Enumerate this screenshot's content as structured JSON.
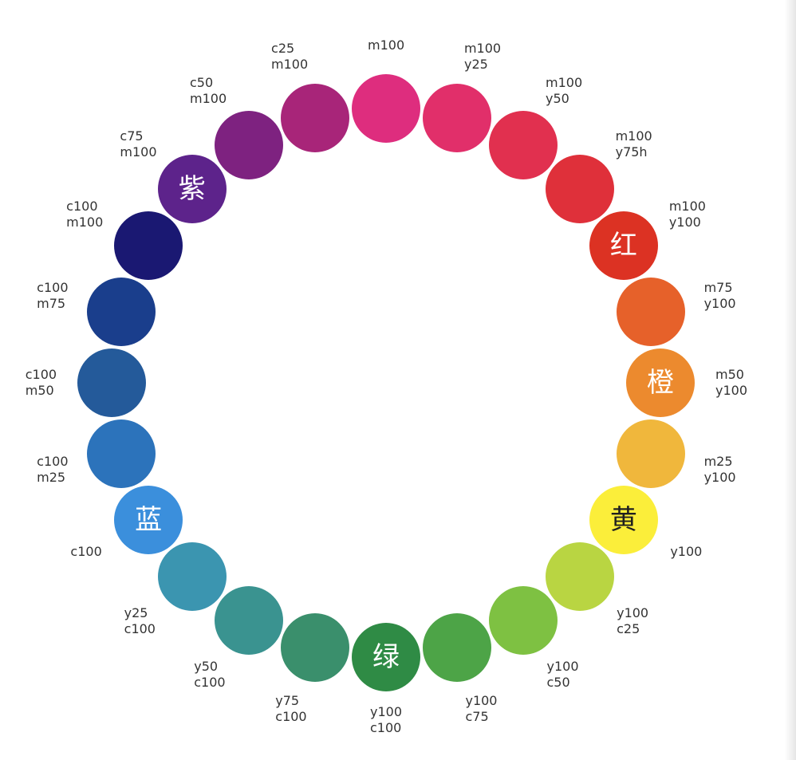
{
  "swatches": [
    {
      "lines": [
        "m100"
      ],
      "color": "#de2d7e",
      "glyph": ""
    },
    {
      "lines": [
        "m100",
        "y25"
      ],
      "color": "#e12f6a",
      "glyph": ""
    },
    {
      "lines": [
        "m100",
        "y50"
      ],
      "color": "#e1304f",
      "glyph": ""
    },
    {
      "lines": [
        "m100",
        "y75h"
      ],
      "color": "#df303a",
      "glyph": ""
    },
    {
      "lines": [
        "m100",
        "y100"
      ],
      "color": "#dc3223",
      "glyph": "红"
    },
    {
      "lines": [
        "m75",
        "y100"
      ],
      "color": "#e6612a",
      "glyph": ""
    },
    {
      "lines": [
        "m50",
        "y100"
      ],
      "color": "#ec8a2e",
      "glyph": "橙"
    },
    {
      "lines": [
        "m25",
        "y100"
      ],
      "color": "#f0b73c",
      "glyph": ""
    },
    {
      "lines": [
        "y100"
      ],
      "color": "#fbee3a",
      "glyph": "黄"
    },
    {
      "lines": [
        "y100",
        "c25"
      ],
      "color": "#b9d542",
      "glyph": ""
    },
    {
      "lines": [
        "y100",
        "c50"
      ],
      "color": "#7ec142",
      "glyph": ""
    },
    {
      "lines": [
        "y100",
        "c75"
      ],
      "color": "#4da447",
      "glyph": ""
    },
    {
      "lines": [
        "y100",
        "c100"
      ],
      "color": "#2f8b45",
      "glyph": "绿"
    },
    {
      "lines": [
        "y75",
        "c100"
      ],
      "color": "#3a8f6c",
      "glyph": ""
    },
    {
      "lines": [
        "y50",
        "c100"
      ],
      "color": "#3a9390",
      "glyph": ""
    },
    {
      "lines": [
        "y25",
        "c100"
      ],
      "color": "#3b95b0",
      "glyph": ""
    },
    {
      "lines": [
        "c100"
      ],
      "color": "#3b8fdc",
      "glyph": "蓝"
    },
    {
      "lines": [
        "c100",
        "m25"
      ],
      "color": "#2c73bb",
      "glyph": ""
    },
    {
      "lines": [
        "c100",
        "m50"
      ],
      "color": "#245a9a",
      "glyph": ""
    },
    {
      "lines": [
        "c100",
        "m75"
      ],
      "color": "#1a3e8c",
      "glyph": ""
    },
    {
      "lines": [
        "c100",
        "m100"
      ],
      "color": "#1a1872",
      "glyph": ""
    },
    {
      "lines": [
        "c75",
        "m100"
      ],
      "color": "#5d238b",
      "glyph": "紫"
    },
    {
      "lines": [
        "c50",
        "m100"
      ],
      "color": "#7e2280",
      "glyph": ""
    },
    {
      "lines": [
        "c25",
        "m100"
      ],
      "color": "#a82579",
      "glyph": ""
    }
  ]
}
